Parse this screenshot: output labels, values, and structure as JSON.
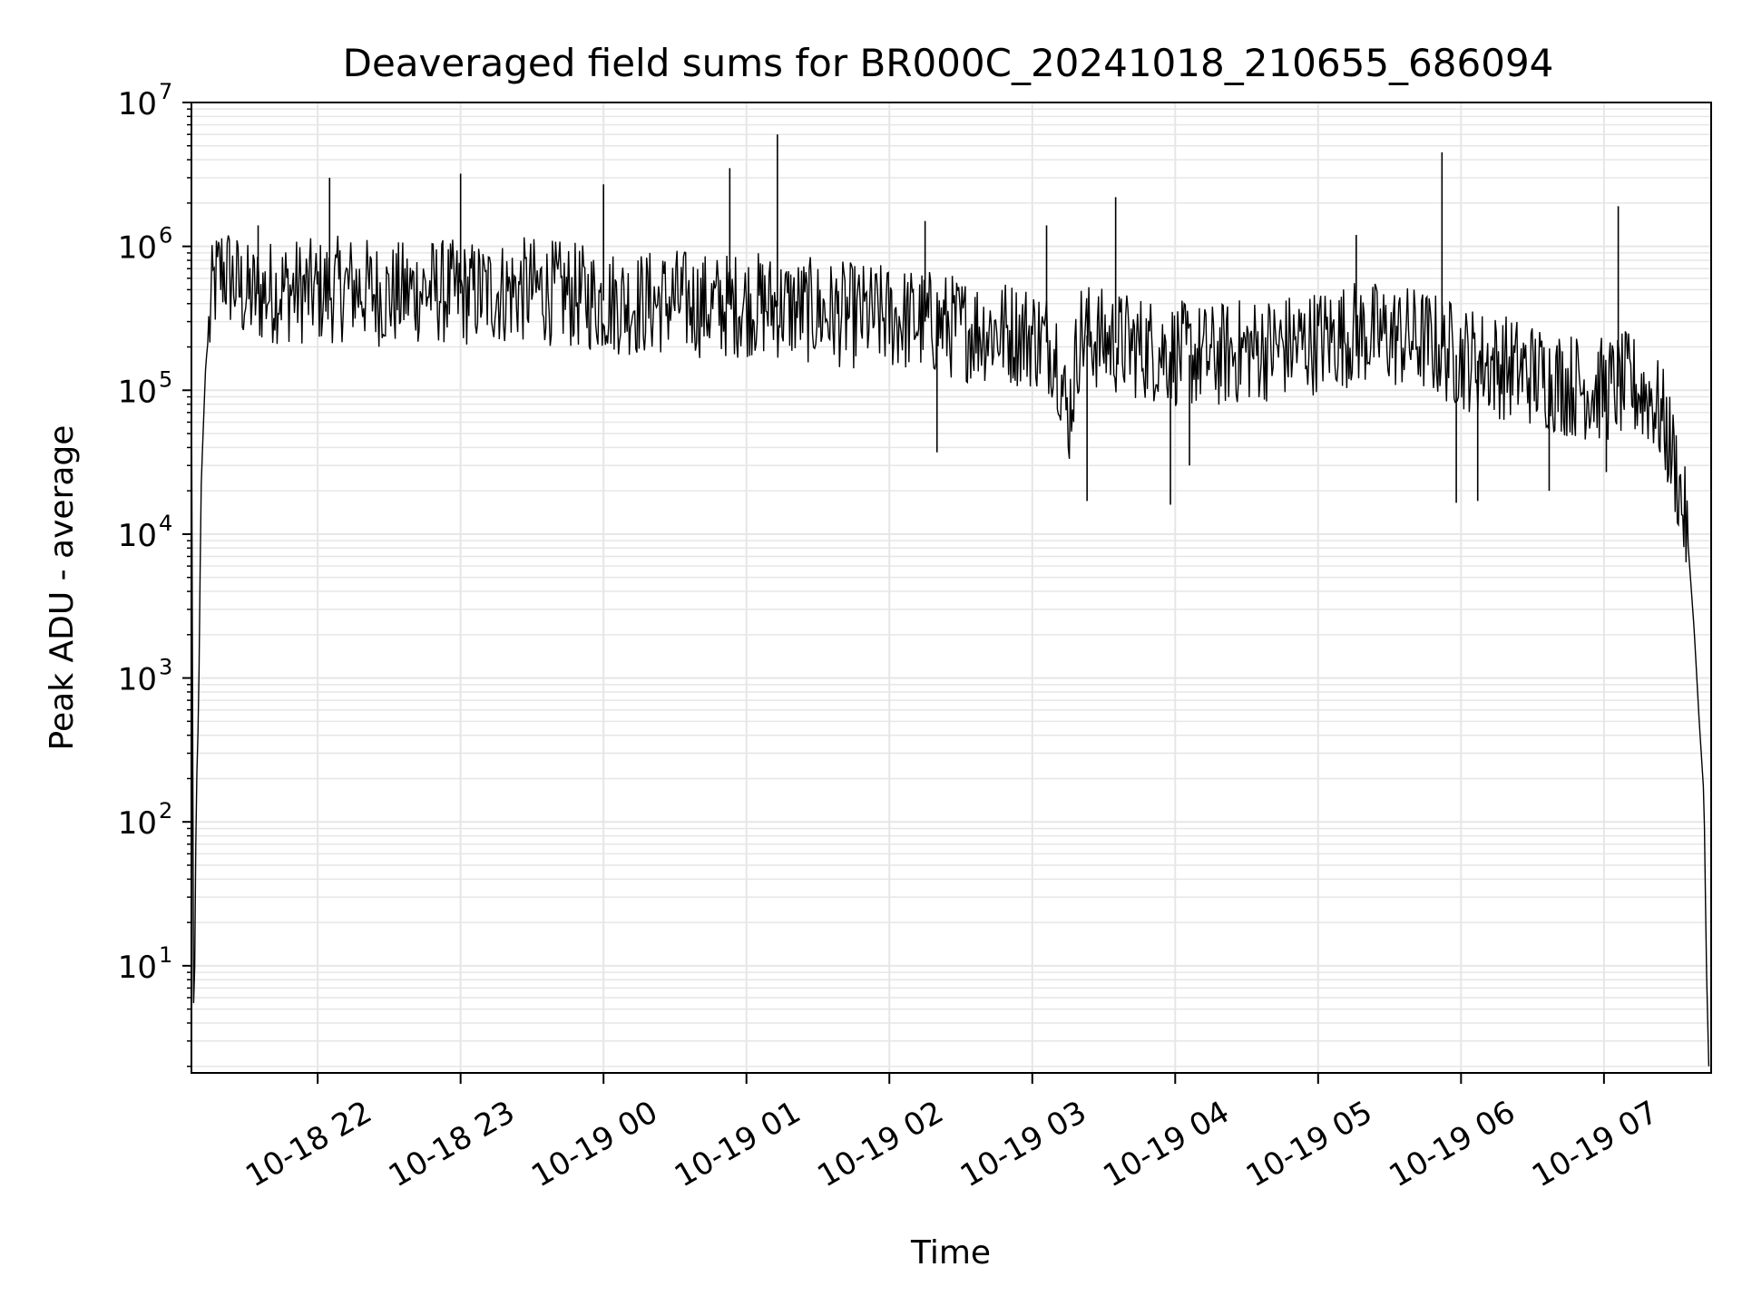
{
  "chart_data": {
    "type": "line",
    "title": "Deaveraged field sums for BR000C_20241018_210655_686094",
    "xlabel": "Time",
    "ylabel": "Peak ADU - average",
    "yscale": "log",
    "ylim": [
      1.8,
      10000000
    ],
    "xlim": [
      "2024-10-18 21:07",
      "2024-10-19 07:45"
    ],
    "grid": true,
    "line_color": "#000000",
    "grid_color": "#e6e6e6",
    "x_ticks": [
      {
        "t": "2024-10-18 22:00",
        "label": "10-18 22"
      },
      {
        "t": "2024-10-18 23:00",
        "label": "10-18 23"
      },
      {
        "t": "2024-10-19 00:00",
        "label": "10-19 00"
      },
      {
        "t": "2024-10-19 01:00",
        "label": "10-19 01"
      },
      {
        "t": "2024-10-19 02:00",
        "label": "10-19 02"
      },
      {
        "t": "2024-10-19 03:00",
        "label": "10-19 03"
      },
      {
        "t": "2024-10-19 04:00",
        "label": "10-19 04"
      },
      {
        "t": "2024-10-19 05:00",
        "label": "10-19 05"
      },
      {
        "t": "2024-10-19 06:00",
        "label": "10-19 06"
      },
      {
        "t": "2024-10-19 07:00",
        "label": "10-19 07"
      }
    ],
    "y_ticks": [
      {
        "value": 10,
        "base": "10",
        "exp": "1"
      },
      {
        "value": 100,
        "base": "10",
        "exp": "2"
      },
      {
        "value": 1000,
        "base": "10",
        "exp": "3"
      },
      {
        "value": 10000,
        "base": "10",
        "exp": "4"
      },
      {
        "value": 100000,
        "base": "10",
        "exp": "5"
      },
      {
        "value": 1000000,
        "base": "10",
        "exp": "6"
      },
      {
        "value": 10000000,
        "base": "10",
        "exp": "7"
      }
    ],
    "series": [
      {
        "points": [
          [
            "2024-10-18 21:07",
            150000
          ],
          [
            "2024-10-18 21:08",
            2
          ],
          [
            "2024-10-18 21:09",
            150
          ],
          [
            "2024-10-18 21:10",
            600
          ],
          [
            "2024-10-18 21:11",
            20000
          ],
          [
            "2024-10-18 21:13",
            150000
          ],
          [
            "2024-10-18 21:16",
            500000
          ],
          [
            "2024-10-18 21:20",
            700000
          ],
          [
            "2024-10-18 21:30",
            450000
          ],
          [
            "2024-10-18 21:45",
            500000
          ],
          [
            "2024-10-18 22:00",
            480000
          ],
          [
            "2024-10-18 22:15",
            520000
          ],
          [
            "2024-10-18 22:30",
            450000
          ],
          [
            "2024-10-18 22:45",
            500000
          ],
          [
            "2024-10-18 23:00",
            470000
          ],
          [
            "2024-10-18 23:15",
            480000
          ],
          [
            "2024-10-18 23:30",
            500000
          ],
          [
            "2024-10-18 23:45",
            460000
          ],
          [
            "2024-10-19 00:00",
            420000
          ],
          [
            "2024-10-19 00:15",
            400000
          ],
          [
            "2024-10-19 00:30",
            420000
          ],
          [
            "2024-10-19 00:45",
            380000
          ],
          [
            "2024-10-19 01:00",
            400000
          ],
          [
            "2024-10-19 01:15",
            380000
          ],
          [
            "2024-10-19 01:30",
            350000
          ],
          [
            "2024-10-19 01:45",
            330000
          ],
          [
            "2024-10-19 02:00",
            320000
          ],
          [
            "2024-10-19 02:15",
            300000
          ],
          [
            "2024-10-19 02:30",
            270000
          ],
          [
            "2024-10-19 02:45",
            260000
          ],
          [
            "2024-10-19 03:00",
            240000
          ],
          [
            "2024-10-19 03:10",
            200000
          ],
          [
            "2024-10-19 03:15",
            60000
          ],
          [
            "2024-10-19 03:20",
            250000
          ],
          [
            "2024-10-19 03:30",
            220000
          ],
          [
            "2024-10-19 03:45",
            200000
          ],
          [
            "2024-10-19 04:00",
            180000
          ],
          [
            "2024-10-19 04:15",
            170000
          ],
          [
            "2024-10-19 04:30",
            190000
          ],
          [
            "2024-10-19 04:45",
            200000
          ],
          [
            "2024-10-19 05:00",
            220000
          ],
          [
            "2024-10-19 05:15",
            250000
          ],
          [
            "2024-10-19 05:30",
            240000
          ],
          [
            "2024-10-19 05:45",
            220000
          ],
          [
            "2024-10-19 06:00",
            170000
          ],
          [
            "2024-10-19 06:15",
            150000
          ],
          [
            "2024-10-19 06:30",
            130000
          ],
          [
            "2024-10-19 06:45",
            110000
          ],
          [
            "2024-10-19 07:00",
            100000
          ],
          [
            "2024-10-19 07:10",
            110000
          ],
          [
            "2024-10-19 07:20",
            90000
          ],
          [
            "2024-10-19 07:25",
            60000
          ],
          [
            "2024-10-19 07:30",
            30000
          ],
          [
            "2024-10-19 07:35",
            10000
          ],
          [
            "2024-10-19 07:38",
            2000
          ],
          [
            "2024-10-19 07:40",
            500
          ],
          [
            "2024-10-19 07:42",
            150
          ],
          [
            "2024-10-19 07:43",
            10
          ],
          [
            "2024-10-19 07:44",
            2
          ]
        ],
        "spikes": [
          [
            "2024-10-19 01:13",
            6000000
          ],
          [
            "2024-10-19 00:53",
            3500000
          ],
          [
            "2024-10-18 23:00",
            3200000
          ],
          [
            "2024-10-18 22:05",
            3000000
          ],
          [
            "2024-10-19 00:00",
            2700000
          ],
          [
            "2024-10-19 05:52",
            4500000
          ],
          [
            "2024-10-19 03:35",
            2200000
          ],
          [
            "2024-10-19 07:06",
            1900000
          ],
          [
            "2024-10-19 02:15",
            1500000
          ],
          [
            "2024-10-19 03:06",
            1400000
          ],
          [
            "2024-10-19 05:16",
            1200000
          ],
          [
            "2024-10-18 21:35",
            1400000
          ],
          [
            "2024-10-19 03:23",
            17000
          ],
          [
            "2024-10-19 03:58",
            16000
          ],
          [
            "2024-10-19 05:58",
            16500
          ],
          [
            "2024-10-19 06:07",
            17000
          ],
          [
            "2024-10-19 02:20",
            37000
          ],
          [
            "2024-10-19 06:37",
            20000
          ],
          [
            "2024-10-19 07:01",
            27000
          ],
          [
            "2024-10-19 04:06",
            30000
          ]
        ]
      }
    ]
  }
}
